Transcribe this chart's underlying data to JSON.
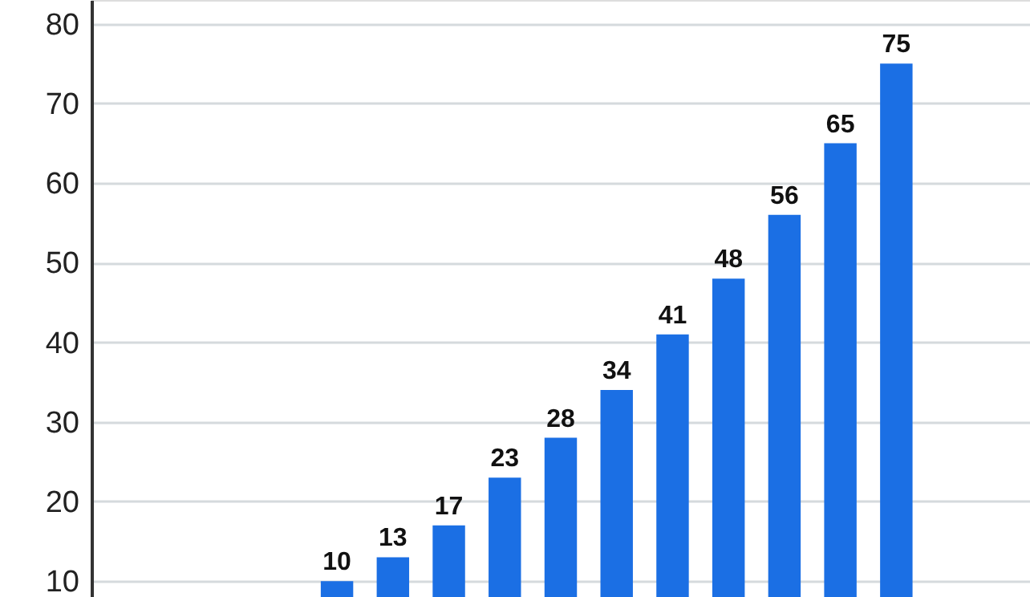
{
  "chart_data": {
    "type": "bar",
    "categories": [
      null,
      null,
      null,
      null,
      null,
      null,
      null,
      null,
      null,
      null,
      null,
      null,
      null,
      null,
      null,
      null,
      null
    ],
    "values": [
      null,
      null,
      null,
      null,
      10,
      13,
      17,
      23,
      28,
      34,
      41,
      48,
      56,
      65,
      75,
      null,
      null
    ],
    "color": "#1b6fe4",
    "ylim": [
      8,
      83
    ],
    "yticks": [
      10,
      20,
      30,
      40,
      50,
      60,
      70,
      80
    ],
    "grid": "y",
    "data_labels": true,
    "tick_labels": "y"
  }
}
